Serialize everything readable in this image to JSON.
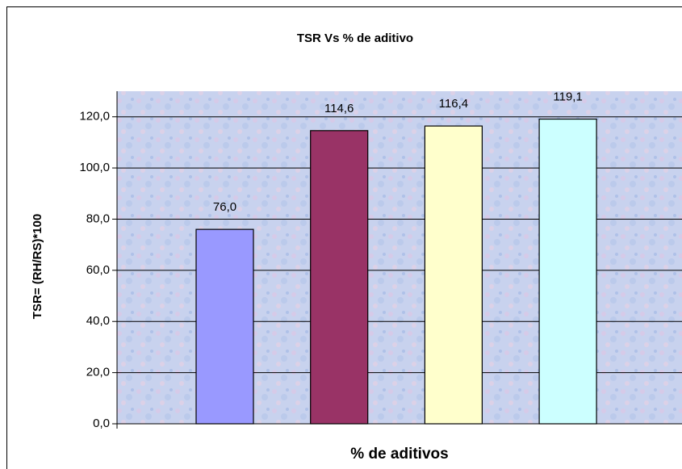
{
  "chart_data": {
    "type": "bar",
    "title": "TSR Vs % de aditivo",
    "x_label": "% de aditivos",
    "y_label": "TSR= (RH/RS)*100",
    "categories": [
      null,
      null,
      null,
      null
    ],
    "values": [
      76.0,
      114.6,
      116.4,
      119.1
    ],
    "value_labels": [
      "76,0",
      "114,6",
      "116,4",
      "119,1"
    ],
    "colors": [
      "#9999ff",
      "#993366",
      "#ffffcc",
      "#ccffff"
    ],
    "ylim": [
      0,
      130
    ],
    "yticks": [
      {
        "value": 0,
        "label": "0,0"
      },
      {
        "value": 20,
        "label": "20,0"
      },
      {
        "value": 40,
        "label": "40,0"
      },
      {
        "value": 60,
        "label": "60,0"
      },
      {
        "value": 80,
        "label": "80,0"
      },
      {
        "value": 100,
        "label": "100,0"
      },
      {
        "value": 120,
        "label": "120,0"
      }
    ],
    "grid": true
  }
}
